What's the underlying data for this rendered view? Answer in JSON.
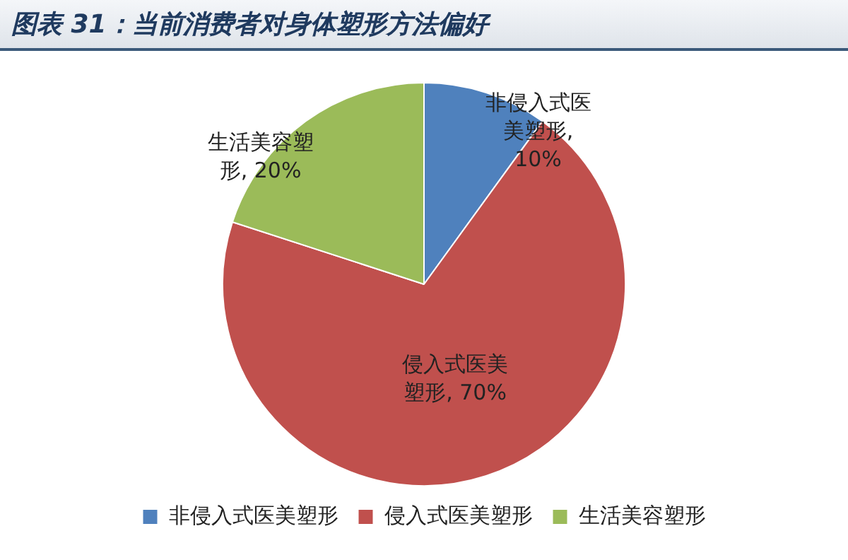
{
  "chart_data": {
    "type": "pie",
    "title": "图表 31：当前消费者对身体塑形方法偏好",
    "categories": [
      "非侵入式医美塑形",
      "侵入式医美塑形",
      "生活美容塑形"
    ],
    "values": [
      10,
      70,
      20
    ],
    "colors": [
      "#4f81bd",
      "#c0504d",
      "#9bbb59"
    ],
    "value_labels": [
      "非侵入式医美塑形, 10%",
      "侵入式医美塑形, 70%",
      "生活美容塑形, 20%"
    ],
    "legend": "bottom"
  }
}
